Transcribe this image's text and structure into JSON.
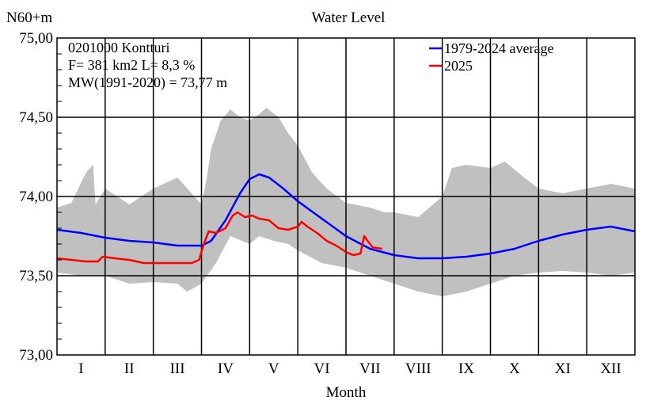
{
  "chart_data": {
    "type": "line",
    "title": "Water Level",
    "ylabel": "N60+m",
    "xlabel": "Month",
    "ylim": [
      73.0,
      75.0
    ],
    "y_ticks": [
      "73,00",
      "73,50",
      "74,00",
      "74,50",
      "75,00"
    ],
    "y_tick_values": [
      73.0,
      73.5,
      74.0,
      74.5,
      75.0
    ],
    "categories": [
      "I",
      "II",
      "III",
      "IV",
      "V",
      "VI",
      "VII",
      "VIII",
      "IX",
      "X",
      "XI",
      "XII"
    ],
    "xlim": [
      0,
      12
    ],
    "grid": true,
    "legend_position": "top-right",
    "info_lines": [
      "0201000 Kontturi",
      "F=    381 km2 L=  8,3 %",
      "MW(1991-2020) = 73,77 m"
    ],
    "band": {
      "color": "#c0c0c0",
      "upper": [
        [
          0.0,
          73.93
        ],
        [
          0.3,
          73.96
        ],
        [
          0.6,
          74.15
        ],
        [
          0.75,
          74.2
        ],
        [
          0.8,
          73.95
        ],
        [
          1.0,
          74.05
        ],
        [
          1.5,
          73.95
        ],
        [
          2.0,
          74.05
        ],
        [
          2.5,
          74.12
        ],
        [
          3.0,
          73.95
        ],
        [
          3.1,
          74.1
        ],
        [
          3.2,
          74.3
        ],
        [
          3.4,
          74.48
        ],
        [
          3.6,
          74.55
        ],
        [
          3.8,
          74.5
        ],
        [
          4.0,
          74.48
        ],
        [
          4.2,
          74.52
        ],
        [
          4.35,
          74.56
        ],
        [
          4.6,
          74.5
        ],
        [
          4.8,
          74.4
        ],
        [
          5.0,
          74.32
        ],
        [
          5.3,
          74.15
        ],
        [
          5.6,
          74.05
        ],
        [
          6.0,
          73.96
        ],
        [
          6.5,
          73.93
        ],
        [
          6.8,
          73.9
        ],
        [
          7.0,
          73.9
        ],
        [
          7.5,
          73.87
        ],
        [
          8.0,
          74.0
        ],
        [
          8.2,
          74.18
        ],
        [
          8.5,
          74.2
        ],
        [
          9.0,
          74.18
        ],
        [
          9.3,
          74.22
        ],
        [
          9.7,
          74.12
        ],
        [
          10.0,
          74.05
        ],
        [
          10.5,
          74.02
        ],
        [
          11.0,
          74.05
        ],
        [
          11.5,
          74.08
        ],
        [
          12.0,
          74.05
        ]
      ],
      "lower": [
        [
          0.0,
          73.52
        ],
        [
          0.5,
          73.5
        ],
        [
          1.0,
          73.5
        ],
        [
          1.5,
          73.45
        ],
        [
          2.0,
          73.46
        ],
        [
          2.5,
          73.45
        ],
        [
          2.7,
          73.4
        ],
        [
          3.0,
          73.45
        ],
        [
          3.3,
          73.58
        ],
        [
          3.6,
          73.75
        ],
        [
          4.0,
          73.7
        ],
        [
          4.2,
          73.75
        ],
        [
          4.5,
          73.72
        ],
        [
          4.8,
          73.7
        ],
        [
          5.0,
          73.66
        ],
        [
          5.5,
          73.58
        ],
        [
          6.0,
          73.55
        ],
        [
          6.5,
          73.5
        ],
        [
          7.0,
          73.45
        ],
        [
          7.5,
          73.4
        ],
        [
          8.0,
          73.37
        ],
        [
          8.5,
          73.4
        ],
        [
          9.0,
          73.45
        ],
        [
          9.5,
          73.5
        ],
        [
          10.0,
          73.52
        ],
        [
          10.5,
          73.53
        ],
        [
          11.0,
          73.52
        ],
        [
          11.5,
          73.5
        ],
        [
          12.0,
          73.52
        ]
      ]
    },
    "series": [
      {
        "name": "1979-2024 average",
        "color": "#0000ff",
        "points": [
          [
            0.0,
            73.79
          ],
          [
            0.5,
            73.77
          ],
          [
            1.0,
            73.74
          ],
          [
            1.5,
            73.72
          ],
          [
            2.0,
            73.71
          ],
          [
            2.5,
            73.69
          ],
          [
            3.0,
            73.69
          ],
          [
            3.2,
            73.72
          ],
          [
            3.5,
            73.85
          ],
          [
            3.8,
            74.02
          ],
          [
            4.0,
            74.11
          ],
          [
            4.2,
            74.14
          ],
          [
            4.4,
            74.12
          ],
          [
            4.7,
            74.05
          ],
          [
            5.0,
            73.97
          ],
          [
            5.5,
            73.86
          ],
          [
            6.0,
            73.75
          ],
          [
            6.5,
            73.67
          ],
          [
            7.0,
            73.63
          ],
          [
            7.5,
            73.61
          ],
          [
            8.0,
            73.61
          ],
          [
            8.5,
            73.62
          ],
          [
            9.0,
            73.64
          ],
          [
            9.5,
            73.67
          ],
          [
            10.0,
            73.72
          ],
          [
            10.5,
            73.76
          ],
          [
            11.0,
            73.79
          ],
          [
            11.5,
            73.81
          ],
          [
            12.0,
            73.78
          ]
        ]
      },
      {
        "name": "2025",
        "color": "#ff0000",
        "points": [
          [
            0.0,
            73.61
          ],
          [
            0.3,
            73.6
          ],
          [
            0.6,
            73.59
          ],
          [
            0.85,
            73.59
          ],
          [
            0.95,
            73.62
          ],
          [
            1.2,
            73.61
          ],
          [
            1.5,
            73.6
          ],
          [
            1.8,
            73.58
          ],
          [
            2.2,
            73.58
          ],
          [
            2.6,
            73.58
          ],
          [
            2.8,
            73.58
          ],
          [
            2.95,
            73.6
          ],
          [
            3.05,
            73.7
          ],
          [
            3.15,
            73.78
          ],
          [
            3.3,
            73.77
          ],
          [
            3.5,
            73.8
          ],
          [
            3.65,
            73.88
          ],
          [
            3.75,
            73.9
          ],
          [
            3.9,
            73.87
          ],
          [
            4.05,
            73.88
          ],
          [
            4.2,
            73.86
          ],
          [
            4.4,
            73.85
          ],
          [
            4.6,
            73.8
          ],
          [
            4.8,
            73.79
          ],
          [
            5.0,
            73.81
          ],
          [
            5.08,
            73.84
          ],
          [
            5.2,
            73.81
          ],
          [
            5.4,
            73.77
          ],
          [
            5.6,
            73.72
          ],
          [
            5.8,
            73.69
          ],
          [
            6.0,
            73.65
          ],
          [
            6.15,
            73.63
          ],
          [
            6.3,
            73.64
          ],
          [
            6.38,
            73.75
          ],
          [
            6.45,
            73.72
          ],
          [
            6.55,
            73.68
          ],
          [
            6.75,
            73.67
          ]
        ]
      }
    ]
  }
}
